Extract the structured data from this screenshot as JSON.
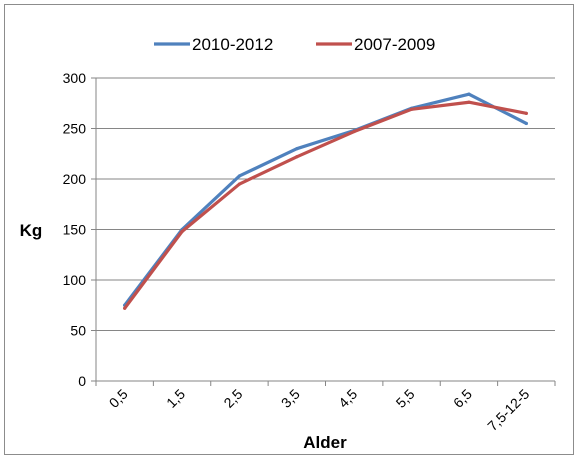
{
  "chart_data": {
    "type": "line",
    "categories": [
      "0,5",
      "1,5",
      "2,5",
      "3,5",
      "4,5",
      "5,5",
      "6,5",
      "7,5-12-5"
    ],
    "series": [
      {
        "name": "2010-2012",
        "color": "#4f81bd",
        "values": [
          75,
          150,
          203,
          230,
          248,
          270,
          284,
          255
        ]
      },
      {
        "name": "2007-2009",
        "color": "#c0504d",
        "values": [
          72,
          148,
          195,
          222,
          247,
          269,
          276,
          265
        ]
      }
    ],
    "xlabel": "Alder",
    "ylabel": "Kg",
    "ylim": [
      0,
      300
    ],
    "yticks": [
      "0",
      "50",
      "100",
      "150",
      "200",
      "250",
      "300"
    ],
    "grid": true,
    "legend_position": "top"
  }
}
